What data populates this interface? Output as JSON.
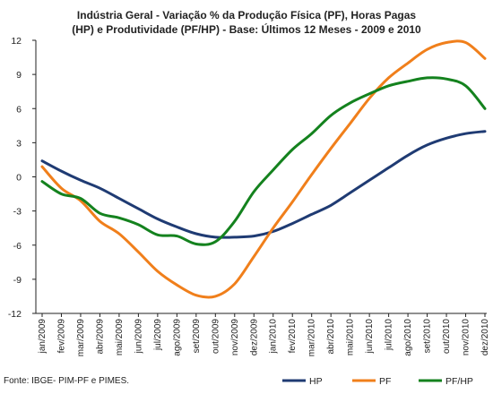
{
  "chart_data": {
    "type": "line",
    "title": [
      "Indústria Geral - Variação % da Produção Física (PF), Horas Pagas",
      "(HP) e Produtividade (PF/HP) - Base: Últimos 12 Meses - 2009 e 2010"
    ],
    "source": "Fonte: IBGE- PIM-PF e PIMES.",
    "categories": [
      "jan/2009",
      "fev/2009",
      "mar/2009",
      "abr/2009",
      "mai/2009",
      "jun/2009",
      "jul/2009",
      "ago/2009",
      "set/2009",
      "out/2009",
      "nov/2009",
      "dez/2009",
      "jan/2010",
      "fev/2010",
      "mar/2010",
      "abr/2010",
      "mai/2010",
      "jun/2010",
      "jul/2010",
      "ago/2010",
      "set/2010",
      "out/2010",
      "nov/2010",
      "dez/2010"
    ],
    "yticks": [
      12,
      9,
      6,
      3,
      0,
      -3,
      -6,
      -9,
      -12
    ],
    "ylim": [
      -12,
      12
    ],
    "grid": false,
    "legend_position": "bottom",
    "series": [
      {
        "name": "HP",
        "color": "#1f3b73",
        "values": [
          1.4,
          0.5,
          -0.3,
          -1.0,
          -1.9,
          -2.8,
          -3.7,
          -4.4,
          -5.0,
          -5.3,
          -5.3,
          -5.2,
          -4.8,
          -4.1,
          -3.3,
          -2.5,
          -1.4,
          -0.3,
          0.8,
          1.9,
          2.8,
          3.4,
          3.8,
          4.0
        ]
      },
      {
        "name": "PF",
        "color": "#f07f1b",
        "values": [
          0.9,
          -1.0,
          -2.1,
          -3.9,
          -5.0,
          -6.6,
          -8.3,
          -9.5,
          -10.4,
          -10.5,
          -9.4,
          -7.0,
          -4.5,
          -2.2,
          0.2,
          2.5,
          4.7,
          6.9,
          8.7,
          10.0,
          11.2,
          11.8,
          11.8,
          10.4
        ]
      },
      {
        "name": "PF/HP",
        "color": "#14821e",
        "values": [
          -0.4,
          -1.5,
          -1.9,
          -3.2,
          -3.6,
          -4.2,
          -5.1,
          -5.2,
          -5.9,
          -5.7,
          -3.9,
          -1.3,
          0.6,
          2.4,
          3.8,
          5.4,
          6.5,
          7.3,
          8.0,
          8.4,
          8.7,
          8.6,
          8.0,
          6.0
        ]
      }
    ]
  }
}
